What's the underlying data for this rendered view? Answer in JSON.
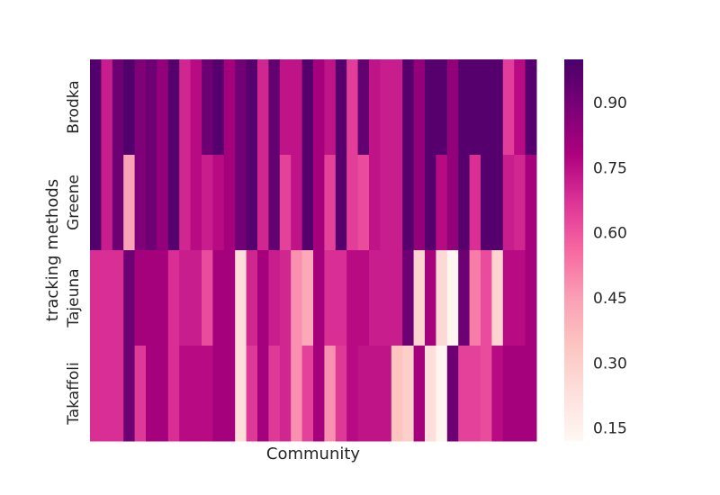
{
  "chart_data": {
    "type": "heatmap",
    "xlabel": "Community",
    "ylabel": "tracking methods",
    "rows": [
      "Brodka",
      "Greene",
      "Tajeuna",
      "Takaffoli"
    ],
    "colorbar": {
      "min": 0.12,
      "max": 1.0,
      "ticks": [
        "0.90",
        "0.75",
        "0.60",
        "0.45",
        "0.30",
        "0.15"
      ],
      "colormap": "RdPu",
      "colors": [
        "#fff7f3",
        "#fde0dd",
        "#fcc5c0",
        "#fa9fb5",
        "#f768a1",
        "#dd3497",
        "#ae017e",
        "#7a0177",
        "#49006a"
      ]
    },
    "values": [
      [
        0.98,
        0.72,
        0.92,
        0.98,
        0.88,
        0.92,
        0.84,
        0.97,
        0.7,
        0.76,
        0.92,
        0.97,
        0.8,
        0.91,
        0.97,
        0.7,
        0.94,
        0.74,
        0.74,
        0.97,
        0.8,
        0.74,
        0.97,
        0.65,
        0.94,
        0.74,
        0.72,
        0.72,
        0.97,
        0.84,
        0.97,
        0.97,
        0.84,
        0.97,
        0.97,
        0.97,
        0.97,
        0.65,
        0.76,
        0.97
      ],
      [
        0.98,
        0.72,
        0.92,
        0.44,
        0.88,
        0.92,
        0.84,
        0.97,
        0.7,
        0.76,
        0.72,
        0.76,
        0.8,
        0.91,
        0.97,
        0.7,
        0.94,
        0.64,
        0.74,
        0.97,
        0.8,
        0.64,
        0.97,
        0.65,
        0.62,
        0.74,
        0.72,
        0.72,
        0.97,
        0.84,
        0.97,
        0.76,
        0.84,
        0.97,
        0.68,
        0.97,
        0.97,
        0.72,
        0.7,
        0.8
      ],
      [
        0.68,
        0.68,
        0.68,
        0.92,
        0.8,
        0.8,
        0.8,
        0.68,
        0.72,
        0.72,
        0.62,
        0.8,
        0.8,
        0.24,
        0.7,
        0.8,
        0.72,
        0.7,
        0.48,
        0.42,
        0.8,
        0.68,
        0.68,
        0.76,
        0.76,
        0.72,
        0.72,
        0.72,
        0.92,
        0.28,
        0.8,
        0.26,
        0.13,
        0.92,
        0.52,
        0.62,
        0.28,
        0.76,
        0.76,
        0.8
      ],
      [
        0.68,
        0.68,
        0.68,
        0.92,
        0.66,
        0.8,
        0.8,
        0.68,
        0.76,
        0.76,
        0.76,
        0.8,
        0.8,
        0.24,
        0.66,
        0.8,
        0.66,
        0.7,
        0.48,
        0.64,
        0.8,
        0.48,
        0.66,
        0.76,
        0.74,
        0.74,
        0.74,
        0.34,
        0.3,
        0.8,
        0.24,
        0.13,
        0.92,
        0.64,
        0.64,
        0.62,
        0.76,
        0.8,
        0.8,
        0.8
      ]
    ]
  }
}
